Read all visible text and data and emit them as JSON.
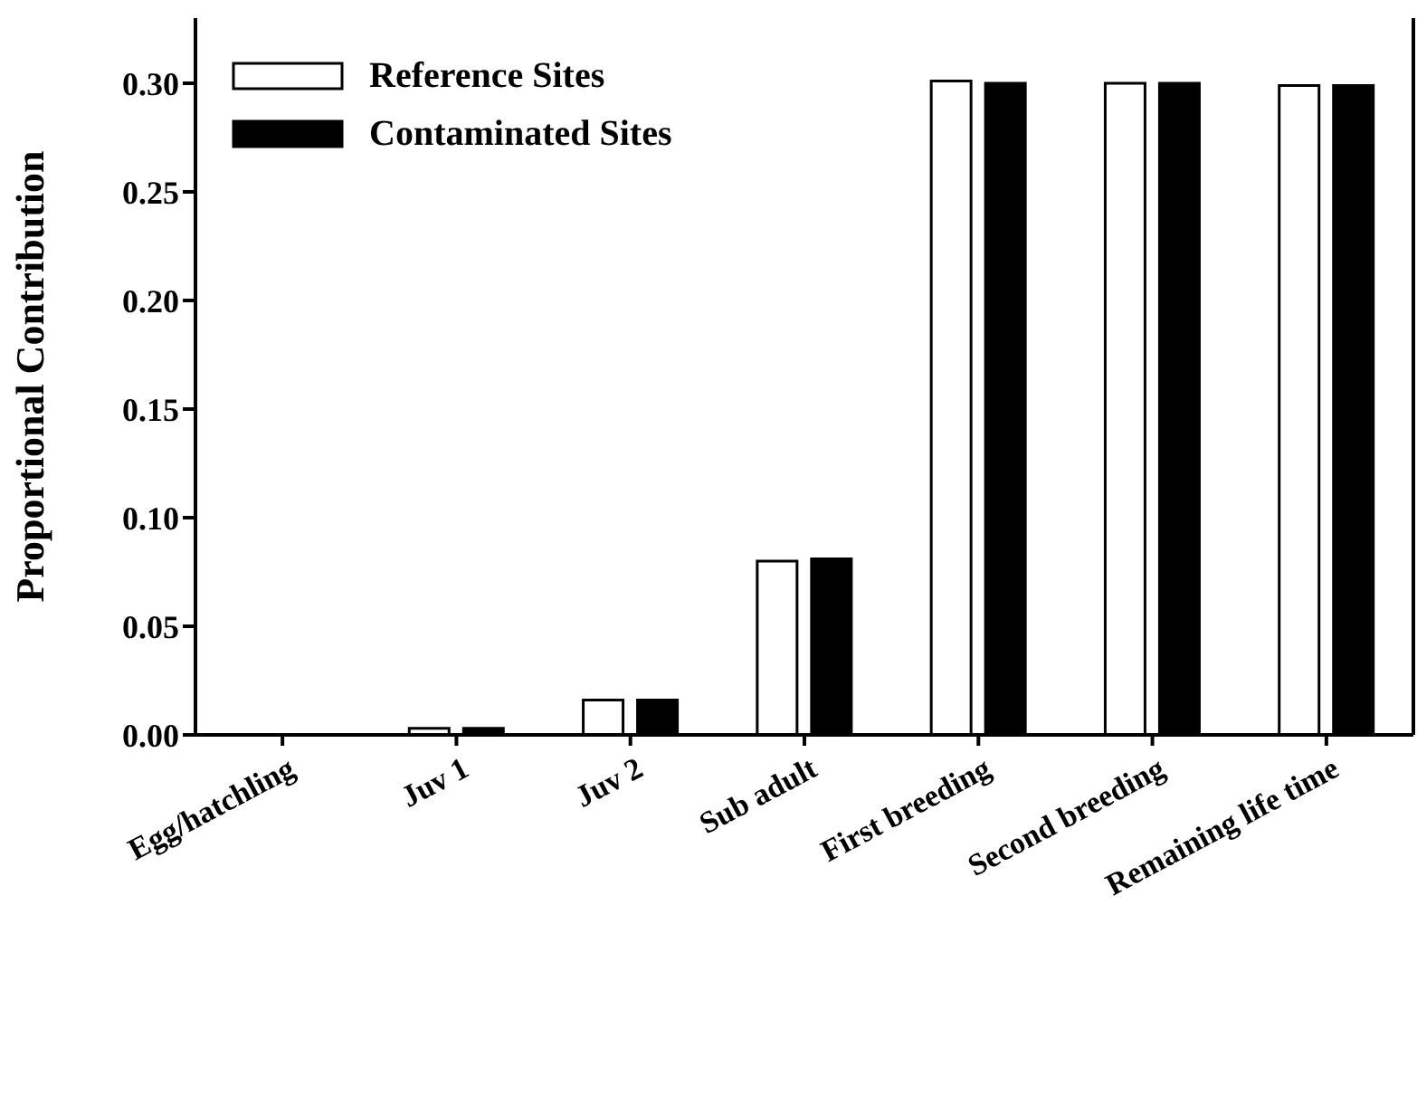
{
  "chart_data": {
    "type": "bar",
    "categories": [
      "Egg/hatchling",
      "Juv 1",
      "Juv 2",
      "Sub adult",
      "First breeding",
      "Second breeding",
      "Remaining life time"
    ],
    "series": [
      {
        "name": "Reference Sites",
        "color": "#ffffff",
        "values": [
          0,
          0.003,
          0.016,
          0.08,
          0.301,
          0.3,
          0.299
        ]
      },
      {
        "name": "Contaminated Sites",
        "color": "#000000",
        "values": [
          0,
          0.003,
          0.016,
          0.081,
          0.3,
          0.3,
          0.299
        ]
      }
    ],
    "ylabel": "Proportional Contribution",
    "ylim": [
      0,
      0.33
    ],
    "yticks": [
      {
        "value": 0,
        "label": "0.00"
      },
      {
        "value": 0.05,
        "label": "0.05"
      },
      {
        "value": 0.1,
        "label": "0.10"
      },
      {
        "value": 0.15,
        "label": "0.15"
      },
      {
        "value": 0.2,
        "label": "0.20"
      },
      {
        "value": 0.25,
        "label": "0.25"
      },
      {
        "value": 0.3,
        "label": "0.30"
      }
    ],
    "legend": "top left",
    "grid": false
  }
}
